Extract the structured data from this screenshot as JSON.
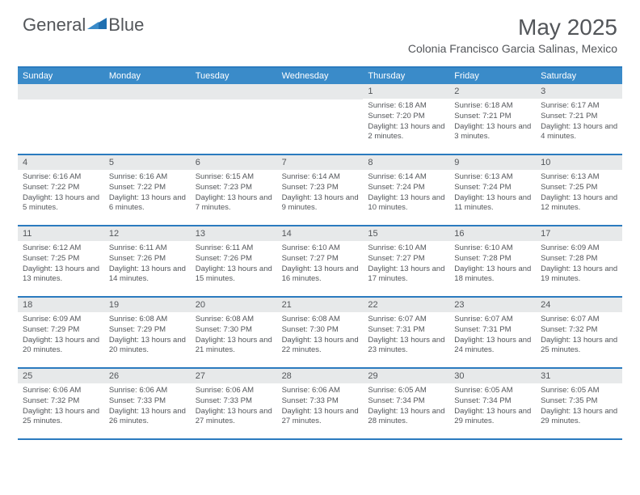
{
  "brand": {
    "name1": "General",
    "name2": "Blue"
  },
  "title": "May 2025",
  "location": "Colonia Francisco Garcia Salinas, Mexico",
  "colors": {
    "header_bg": "#3a8bc9",
    "border": "#2b7bbf",
    "daynum_bg": "#e7e9ea",
    "text": "#53565a",
    "logo_blue": "#1f6fb0"
  },
  "weekdays": [
    "Sunday",
    "Monday",
    "Tuesday",
    "Wednesday",
    "Thursday",
    "Friday",
    "Saturday"
  ],
  "weeks": [
    [
      null,
      null,
      null,
      null,
      {
        "n": "1",
        "sr": "6:18 AM",
        "ss": "7:20 PM",
        "dl": "13 hours and 2 minutes."
      },
      {
        "n": "2",
        "sr": "6:18 AM",
        "ss": "7:21 PM",
        "dl": "13 hours and 3 minutes."
      },
      {
        "n": "3",
        "sr": "6:17 AM",
        "ss": "7:21 PM",
        "dl": "13 hours and 4 minutes."
      }
    ],
    [
      {
        "n": "4",
        "sr": "6:16 AM",
        "ss": "7:22 PM",
        "dl": "13 hours and 5 minutes."
      },
      {
        "n": "5",
        "sr": "6:16 AM",
        "ss": "7:22 PM",
        "dl": "13 hours and 6 minutes."
      },
      {
        "n": "6",
        "sr": "6:15 AM",
        "ss": "7:23 PM",
        "dl": "13 hours and 7 minutes."
      },
      {
        "n": "7",
        "sr": "6:14 AM",
        "ss": "7:23 PM",
        "dl": "13 hours and 9 minutes."
      },
      {
        "n": "8",
        "sr": "6:14 AM",
        "ss": "7:24 PM",
        "dl": "13 hours and 10 minutes."
      },
      {
        "n": "9",
        "sr": "6:13 AM",
        "ss": "7:24 PM",
        "dl": "13 hours and 11 minutes."
      },
      {
        "n": "10",
        "sr": "6:13 AM",
        "ss": "7:25 PM",
        "dl": "13 hours and 12 minutes."
      }
    ],
    [
      {
        "n": "11",
        "sr": "6:12 AM",
        "ss": "7:25 PM",
        "dl": "13 hours and 13 minutes."
      },
      {
        "n": "12",
        "sr": "6:11 AM",
        "ss": "7:26 PM",
        "dl": "13 hours and 14 minutes."
      },
      {
        "n": "13",
        "sr": "6:11 AM",
        "ss": "7:26 PM",
        "dl": "13 hours and 15 minutes."
      },
      {
        "n": "14",
        "sr": "6:10 AM",
        "ss": "7:27 PM",
        "dl": "13 hours and 16 minutes."
      },
      {
        "n": "15",
        "sr": "6:10 AM",
        "ss": "7:27 PM",
        "dl": "13 hours and 17 minutes."
      },
      {
        "n": "16",
        "sr": "6:10 AM",
        "ss": "7:28 PM",
        "dl": "13 hours and 18 minutes."
      },
      {
        "n": "17",
        "sr": "6:09 AM",
        "ss": "7:28 PM",
        "dl": "13 hours and 19 minutes."
      }
    ],
    [
      {
        "n": "18",
        "sr": "6:09 AM",
        "ss": "7:29 PM",
        "dl": "13 hours and 20 minutes."
      },
      {
        "n": "19",
        "sr": "6:08 AM",
        "ss": "7:29 PM",
        "dl": "13 hours and 20 minutes."
      },
      {
        "n": "20",
        "sr": "6:08 AM",
        "ss": "7:30 PM",
        "dl": "13 hours and 21 minutes."
      },
      {
        "n": "21",
        "sr": "6:08 AM",
        "ss": "7:30 PM",
        "dl": "13 hours and 22 minutes."
      },
      {
        "n": "22",
        "sr": "6:07 AM",
        "ss": "7:31 PM",
        "dl": "13 hours and 23 minutes."
      },
      {
        "n": "23",
        "sr": "6:07 AM",
        "ss": "7:31 PM",
        "dl": "13 hours and 24 minutes."
      },
      {
        "n": "24",
        "sr": "6:07 AM",
        "ss": "7:32 PM",
        "dl": "13 hours and 25 minutes."
      }
    ],
    [
      {
        "n": "25",
        "sr": "6:06 AM",
        "ss": "7:32 PM",
        "dl": "13 hours and 25 minutes."
      },
      {
        "n": "26",
        "sr": "6:06 AM",
        "ss": "7:33 PM",
        "dl": "13 hours and 26 minutes."
      },
      {
        "n": "27",
        "sr": "6:06 AM",
        "ss": "7:33 PM",
        "dl": "13 hours and 27 minutes."
      },
      {
        "n": "28",
        "sr": "6:06 AM",
        "ss": "7:33 PM",
        "dl": "13 hours and 27 minutes."
      },
      {
        "n": "29",
        "sr": "6:05 AM",
        "ss": "7:34 PM",
        "dl": "13 hours and 28 minutes."
      },
      {
        "n": "30",
        "sr": "6:05 AM",
        "ss": "7:34 PM",
        "dl": "13 hours and 29 minutes."
      },
      {
        "n": "31",
        "sr": "6:05 AM",
        "ss": "7:35 PM",
        "dl": "13 hours and 29 minutes."
      }
    ]
  ],
  "labels": {
    "sunrise": "Sunrise: ",
    "sunset": "Sunset: ",
    "daylight": "Daylight: "
  }
}
